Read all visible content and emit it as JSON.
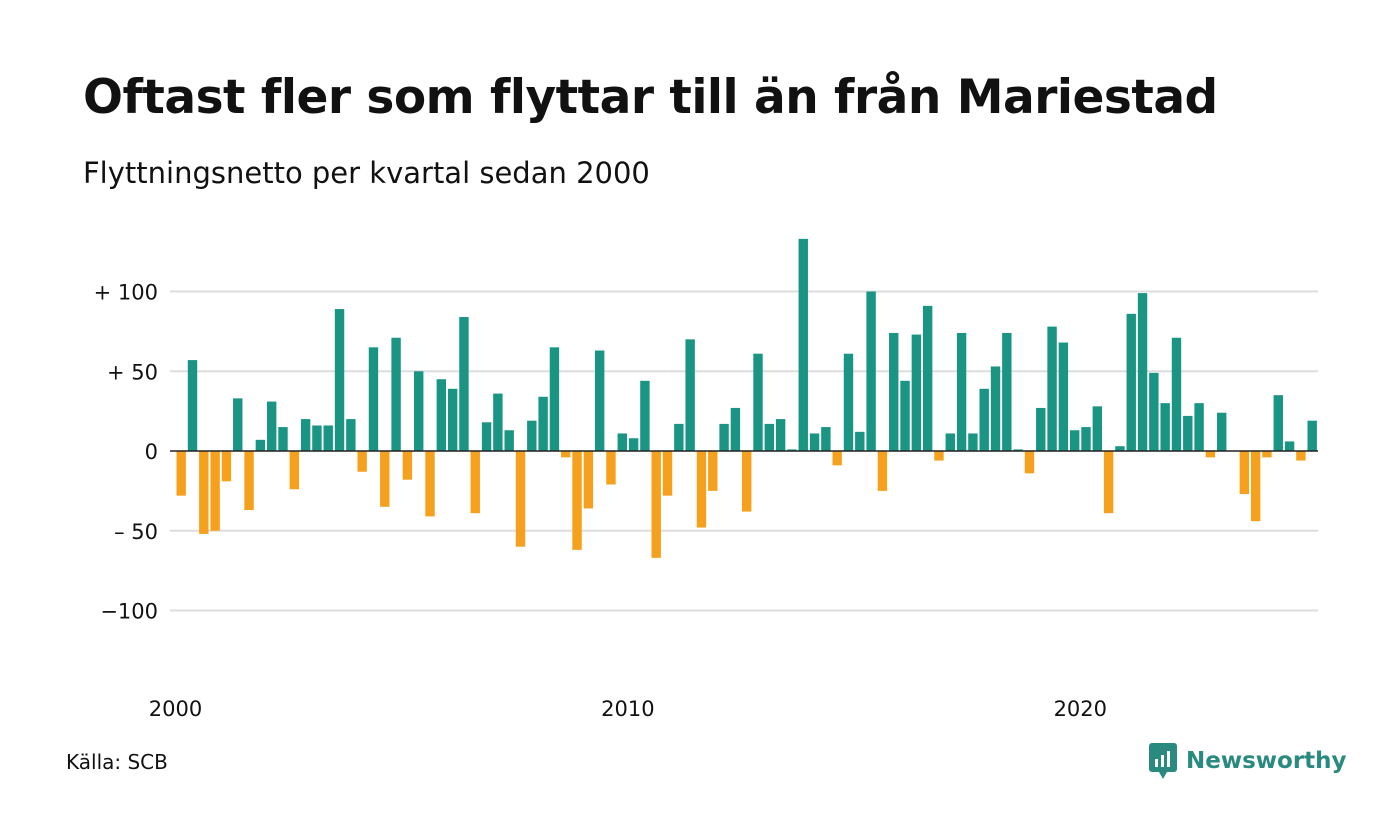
{
  "title": "Oftast fler som flyttar till än från Mariestad",
  "subtitle": "Flyttningsnetto per kvartal sedan 2000",
  "source": "Källa: SCB",
  "brand": {
    "name": "Newsworthy",
    "icon": "newsworthy-logo-icon"
  },
  "colors": {
    "positive": "#1a9483",
    "negative": "#f5a11e",
    "grid": "#dddddd",
    "zero": "#222222"
  },
  "chart_data": {
    "type": "bar",
    "title": "Flyttningsnetto per kvartal sedan 2000",
    "xlabel": "",
    "ylabel": "",
    "ylim": [
      -140,
      140
    ],
    "y_ticks": [
      {
        "value": 100,
        "label": "+ 100"
      },
      {
        "value": 50,
        "label": "+  50"
      },
      {
        "value": 0,
        "label": "0"
      },
      {
        "value": -50,
        "label": "– 50"
      },
      {
        "value": -100,
        "label": "−100"
      }
    ],
    "x_ticks": [
      {
        "index": 0,
        "label": "2000"
      },
      {
        "index": 40,
        "label": "2010"
      },
      {
        "index": 80,
        "label": "2020"
      }
    ],
    "grid": true,
    "legend": "none",
    "values": [
      -28,
      57,
      -52,
      -50,
      -19,
      33,
      -37,
      7,
      31,
      15,
      -24,
      20,
      16,
      16,
      89,
      20,
      -13,
      65,
      -35,
      71,
      -18,
      50,
      -41,
      45,
      39,
      84,
      -39,
      18,
      36,
      13,
      -60,
      19,
      34,
      65,
      -4,
      -62,
      -36,
      63,
      -21,
      11,
      8,
      44,
      -67,
      -28,
      17,
      70,
      -48,
      -25,
      17,
      27,
      -38,
      61,
      17,
      20,
      1,
      133,
      11,
      15,
      -9,
      61,
      12,
      100,
      -25,
      74,
      44,
      73,
      91,
      -6,
      11,
      74,
      11,
      39,
      53,
      74,
      1,
      -14,
      27,
      78,
      68,
      13,
      15,
      28,
      -39,
      3,
      86,
      99,
      49,
      30,
      71,
      22,
      30,
      -4,
      24,
      0,
      -27,
      -44,
      -4,
      35,
      6,
      -6,
      19
    ]
  }
}
